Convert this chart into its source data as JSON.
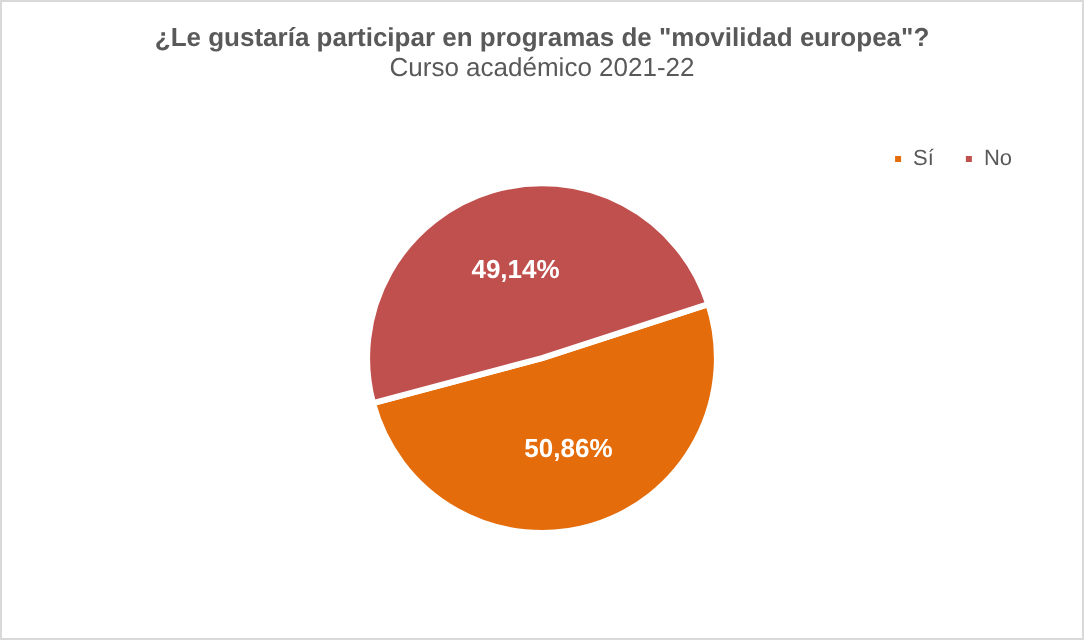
{
  "chart_data": {
    "type": "pie",
    "title": "¿Le gustaría participar en programas de \"movilidad europea\"?",
    "subtitle": "Curso académico 2021-22",
    "categories": [
      "Sí",
      "No"
    ],
    "values": [
      50.86,
      49.14
    ],
    "colors": [
      "#e46c0a",
      "#c0504d"
    ],
    "value_labels": [
      "50,86%",
      "49,14%"
    ],
    "legend": "top right"
  }
}
